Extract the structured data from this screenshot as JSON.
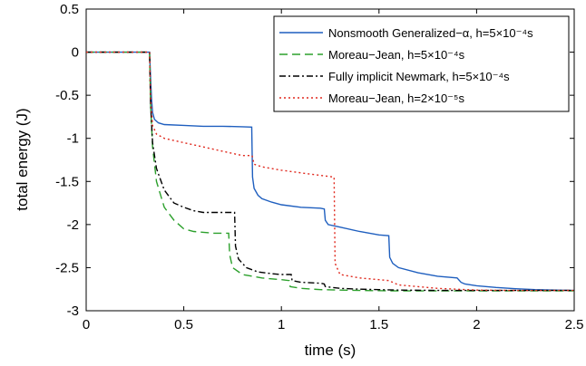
{
  "chart_data": {
    "type": "line",
    "xlabel": "time (s)",
    "ylabel": "total energy (J)",
    "xlim": [
      0,
      2.5
    ],
    "ylim": [
      -3,
      0.5
    ],
    "x_ticks": [
      "0",
      "0.5",
      "1",
      "1.5",
      "2",
      "2.5"
    ],
    "y_ticks": [
      "0.5",
      "0",
      "-0.5",
      "-1",
      "-1.5",
      "-2",
      "-2.5",
      "-3"
    ],
    "grid": false,
    "legend_position": "top-right",
    "series": [
      {
        "name": "Nonsmooth Generalized−α, h=5×10⁻⁴s",
        "color": "#1f5fbf",
        "style": "solid",
        "x": [
          0,
          0.325,
          0.33,
          0.335,
          0.34,
          0.35,
          0.37,
          0.4,
          0.5,
          0.6,
          0.7,
          0.8,
          0.848,
          0.852,
          0.86,
          0.88,
          0.9,
          0.95,
          1.0,
          1.1,
          1.2,
          1.22,
          1.225,
          1.24,
          1.3,
          1.4,
          1.5,
          1.55,
          1.555,
          1.57,
          1.6,
          1.7,
          1.8,
          1.9,
          1.92,
          1.94,
          2.0,
          2.1,
          2.2,
          2.3,
          2.4,
          2.5
        ],
        "y": [
          0,
          0,
          -0.3,
          -0.55,
          -0.7,
          -0.78,
          -0.82,
          -0.84,
          -0.85,
          -0.86,
          -0.86,
          -0.865,
          -0.87,
          -1.45,
          -1.58,
          -1.66,
          -1.7,
          -1.74,
          -1.77,
          -1.8,
          -1.81,
          -1.82,
          -1.95,
          -2.0,
          -2.03,
          -2.08,
          -2.12,
          -2.13,
          -2.38,
          -2.45,
          -2.5,
          -2.56,
          -2.6,
          -2.62,
          -2.67,
          -2.69,
          -2.71,
          -2.73,
          -2.745,
          -2.755,
          -2.76,
          -2.765
        ]
      },
      {
        "name": "Moreau−Jean, h=5×10⁻⁴s",
        "color": "#2ca02c",
        "style": "dashed",
        "x": [
          0,
          0.325,
          0.33,
          0.34,
          0.36,
          0.4,
          0.45,
          0.5,
          0.55,
          0.6,
          0.65,
          0.7,
          0.73,
          0.735,
          0.75,
          0.8,
          0.85,
          0.9,
          0.95,
          1.0,
          1.04,
          1.045,
          1.1,
          1.2,
          1.4,
          1.6,
          1.8,
          2.0,
          2.2,
          2.5
        ],
        "y": [
          0,
          0,
          -0.6,
          -1.1,
          -1.5,
          -1.8,
          -1.95,
          -2.05,
          -2.08,
          -2.09,
          -2.1,
          -2.1,
          -2.1,
          -2.35,
          -2.5,
          -2.58,
          -2.6,
          -2.62,
          -2.63,
          -2.64,
          -2.65,
          -2.72,
          -2.74,
          -2.755,
          -2.765,
          -2.77,
          -2.77,
          -2.77,
          -2.77,
          -2.77
        ]
      },
      {
        "name": "Fully implicit Newmark, h=5×10⁻⁴s",
        "color": "#000000",
        "style": "dashdot",
        "x": [
          0,
          0.325,
          0.33,
          0.34,
          0.36,
          0.4,
          0.45,
          0.5,
          0.55,
          0.6,
          0.65,
          0.7,
          0.76,
          0.765,
          0.78,
          0.82,
          0.88,
          0.95,
          1.0,
          1.05,
          1.055,
          1.1,
          1.2,
          1.22,
          1.225,
          1.3,
          1.4,
          1.5,
          1.6,
          1.8,
          2.0,
          2.2,
          2.5
        ],
        "y": [
          0,
          0,
          -0.6,
          -1.05,
          -1.35,
          -1.6,
          -1.75,
          -1.8,
          -1.84,
          -1.86,
          -1.86,
          -1.86,
          -1.86,
          -2.25,
          -2.4,
          -2.5,
          -2.55,
          -2.57,
          -2.58,
          -2.58,
          -2.65,
          -2.67,
          -2.68,
          -2.69,
          -2.72,
          -2.74,
          -2.75,
          -2.755,
          -2.76,
          -2.765,
          -2.765,
          -2.765,
          -2.765
        ]
      },
      {
        "name": "Moreau−Jean, h=2×10⁻⁵s",
        "color": "#e0291e",
        "style": "dotted",
        "x": [
          0,
          0.325,
          0.33,
          0.34,
          0.36,
          0.4,
          0.5,
          0.6,
          0.7,
          0.8,
          0.85,
          0.86,
          0.9,
          1.0,
          1.1,
          1.2,
          1.27,
          1.275,
          1.3,
          1.4,
          1.5,
          1.55,
          1.6,
          1.8,
          2.0,
          2.2,
          2.5
        ],
        "y": [
          0,
          0,
          -0.5,
          -0.85,
          -0.95,
          -1.0,
          -1.05,
          -1.1,
          -1.15,
          -1.2,
          -1.2,
          -1.3,
          -1.33,
          -1.37,
          -1.4,
          -1.43,
          -1.45,
          -2.45,
          -2.58,
          -2.62,
          -2.64,
          -2.65,
          -2.7,
          -2.74,
          -2.76,
          -2.765,
          -2.765
        ]
      }
    ]
  }
}
